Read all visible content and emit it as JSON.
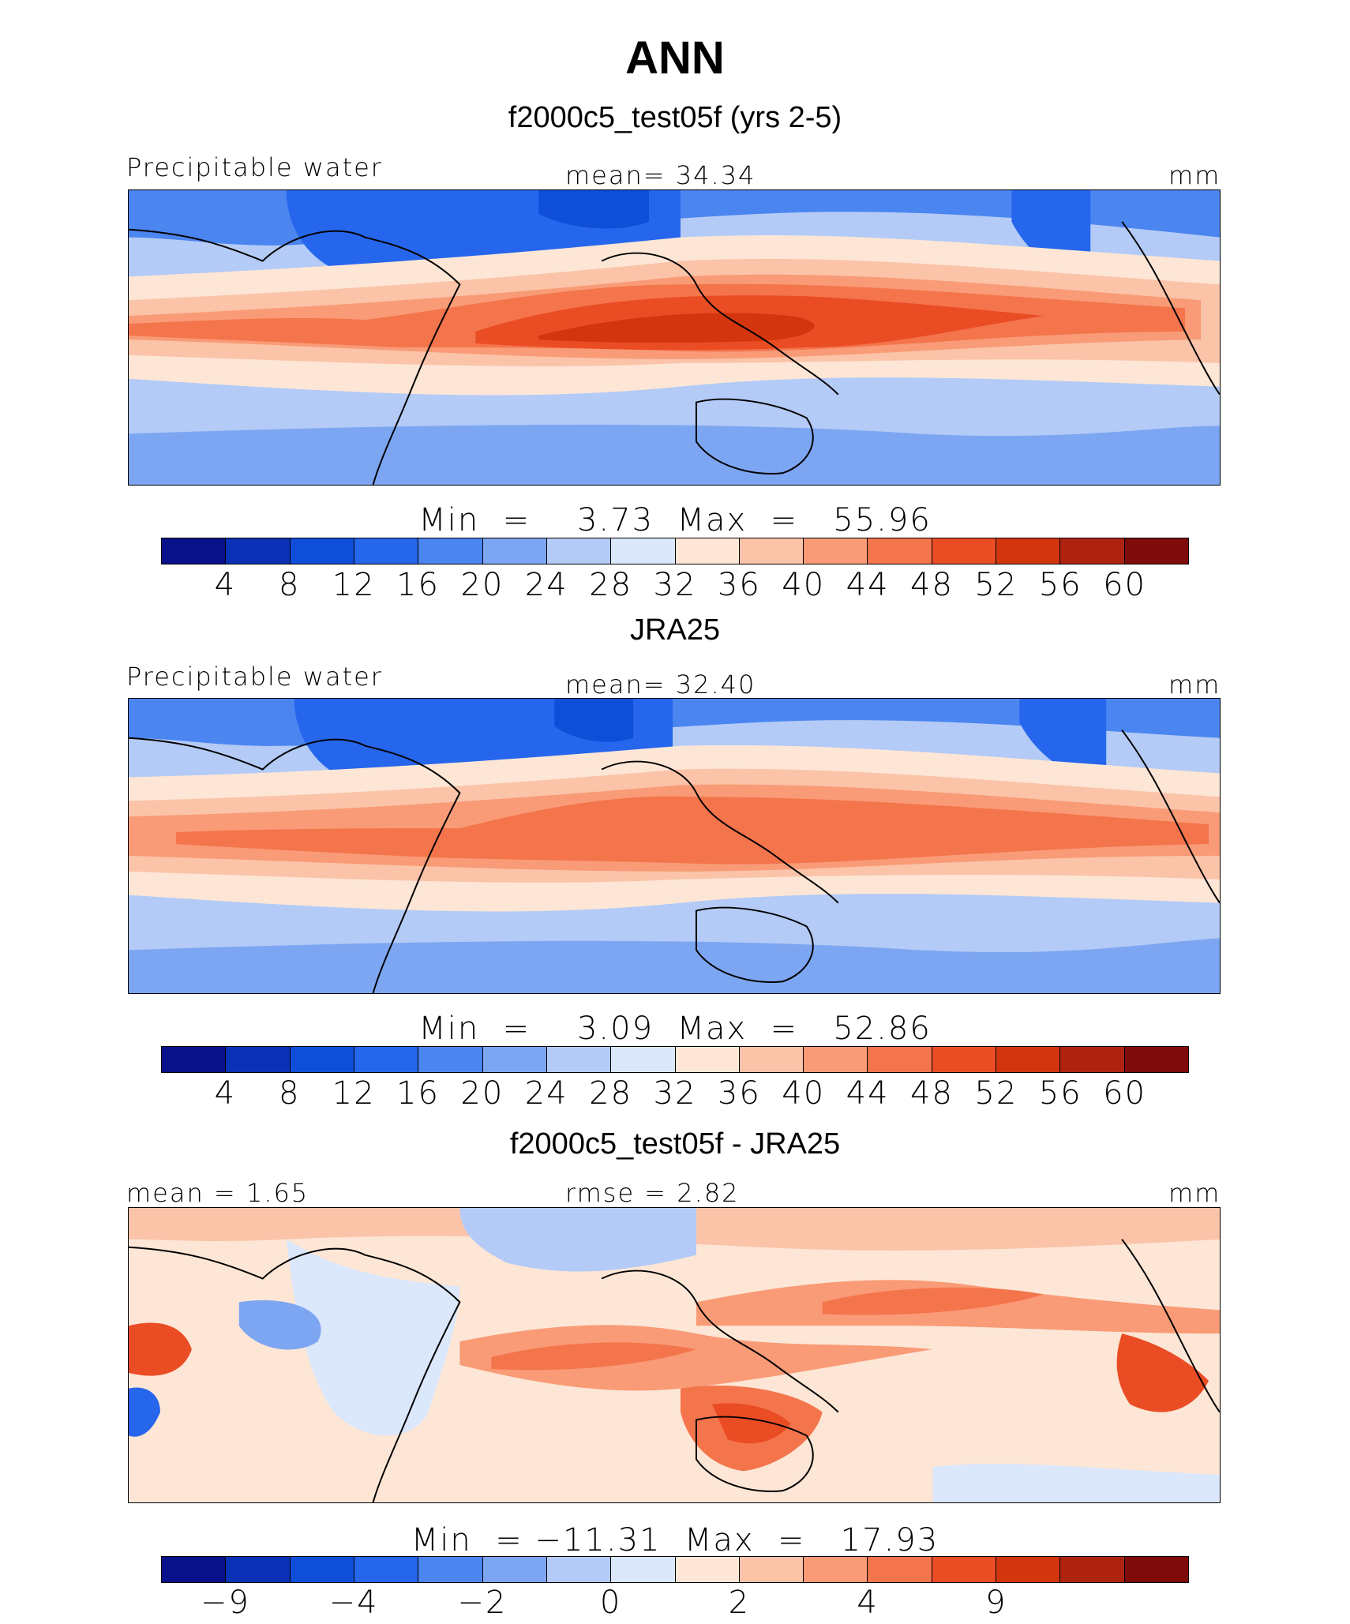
{
  "title": "ANN",
  "colors": [
    "#08108a",
    "#0a31b6",
    "#0f4ed8",
    "#2566ec",
    "#4b85f0",
    "#7da6f2",
    "#b3cbf6",
    "#dbe7fb",
    "#fde6d6",
    "#fbc3a8",
    "#f89b76",
    "#f4744c",
    "#ea4c24",
    "#d3360f",
    "#ae2310",
    "#7f0b0b"
  ],
  "panels": [
    {
      "title": "f2000c5_test05f (yrs 2-5)",
      "left_label": "Precipitable water",
      "center_label": "mean=   34.34",
      "right_label": "mm",
      "minmax": "Min  =    3.73  Max  =   55.96",
      "ticks": [
        "4",
        "8",
        "12",
        "16",
        "20",
        "24",
        "28",
        "32",
        "36",
        "40",
        "44",
        "48",
        "52",
        "56",
        "60"
      ]
    },
    {
      "title": "JRA25",
      "left_label": "Precipitable water",
      "center_label": "mean=   32.40",
      "right_label": "mm",
      "minmax": "Min  =    3.09  Max  =   52.86",
      "ticks": [
        "4",
        "8",
        "12",
        "16",
        "20",
        "24",
        "28",
        "32",
        "36",
        "40",
        "44",
        "48",
        "52",
        "56",
        "60"
      ]
    },
    {
      "title": "f2000c5_test05f - JRA25",
      "left_label": "mean =    1.65",
      "center_label": "rmse =    2.82",
      "right_label": "mm",
      "minmax": "Min  = −11.31  Max  =   17.93",
      "ticks": [
        "−9",
        "",
        "−4",
        "",
        "−2",
        "",
        "0",
        "",
        "2",
        "",
        "4",
        "",
        "9",
        ""
      ]
    }
  ]
}
